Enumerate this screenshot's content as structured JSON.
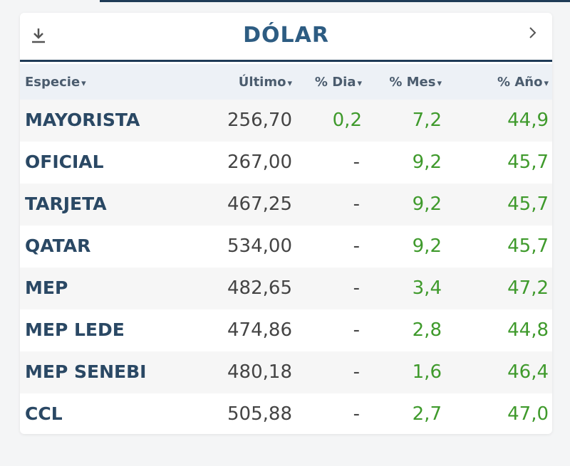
{
  "header": {
    "title": "DÓLAR"
  },
  "table": {
    "columns": [
      "Especie",
      "Último",
      "% Dia",
      "% Mes",
      "% Año"
    ],
    "rows": [
      [
        "MAYORISTA",
        "256,70",
        "0,2",
        "7,2",
        "44,9"
      ],
      [
        "OFICIAL",
        "267,00",
        "-",
        "9,2",
        "45,7"
      ],
      [
        "TARJETA",
        "467,25",
        "-",
        "9,2",
        "45,7"
      ],
      [
        "QATAR",
        "534,00",
        "-",
        "9,2",
        "45,7"
      ],
      [
        "MEP",
        "482,65",
        "-",
        "3,4",
        "47,2"
      ],
      [
        "MEP LEDE",
        "474,86",
        "-",
        "2,8",
        "44,8"
      ],
      [
        "MEP SENEBI",
        "480,18",
        "-",
        "1,6",
        "46,4"
      ],
      [
        "CCL",
        "505,88",
        "-",
        "2,7",
        "47,0"
      ]
    ]
  }
}
